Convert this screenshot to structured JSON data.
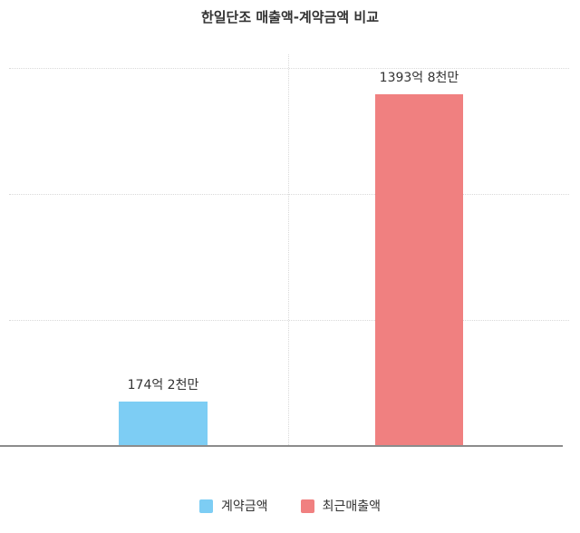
{
  "title": "한일단조 매출액-계약금액 비교",
  "chart_data": {
    "type": "bar",
    "title": "한일단조 매출액-계약금액 비교",
    "categories": [
      "계약금액",
      "최근매출액"
    ],
    "values": [
      174.2,
      1393.8
    ],
    "value_labels": [
      "174억 2천만",
      "1393억 8천만"
    ],
    "unit": "억원",
    "xlabel": "",
    "ylabel": "",
    "ylim": [
      0,
      1500
    ],
    "gridline_values": [
      500,
      1000,
      1500
    ],
    "grid": "dotted horizontal lines plus one dotted vertical separator",
    "legend_position": "bottom",
    "colors": [
      "#7dcdf4",
      "#f08080"
    ]
  },
  "legend": {
    "items": [
      {
        "label": "계약금액",
        "color": "#7dcdf4"
      },
      {
        "label": "최근매출액",
        "color": "#f08080"
      }
    ]
  }
}
